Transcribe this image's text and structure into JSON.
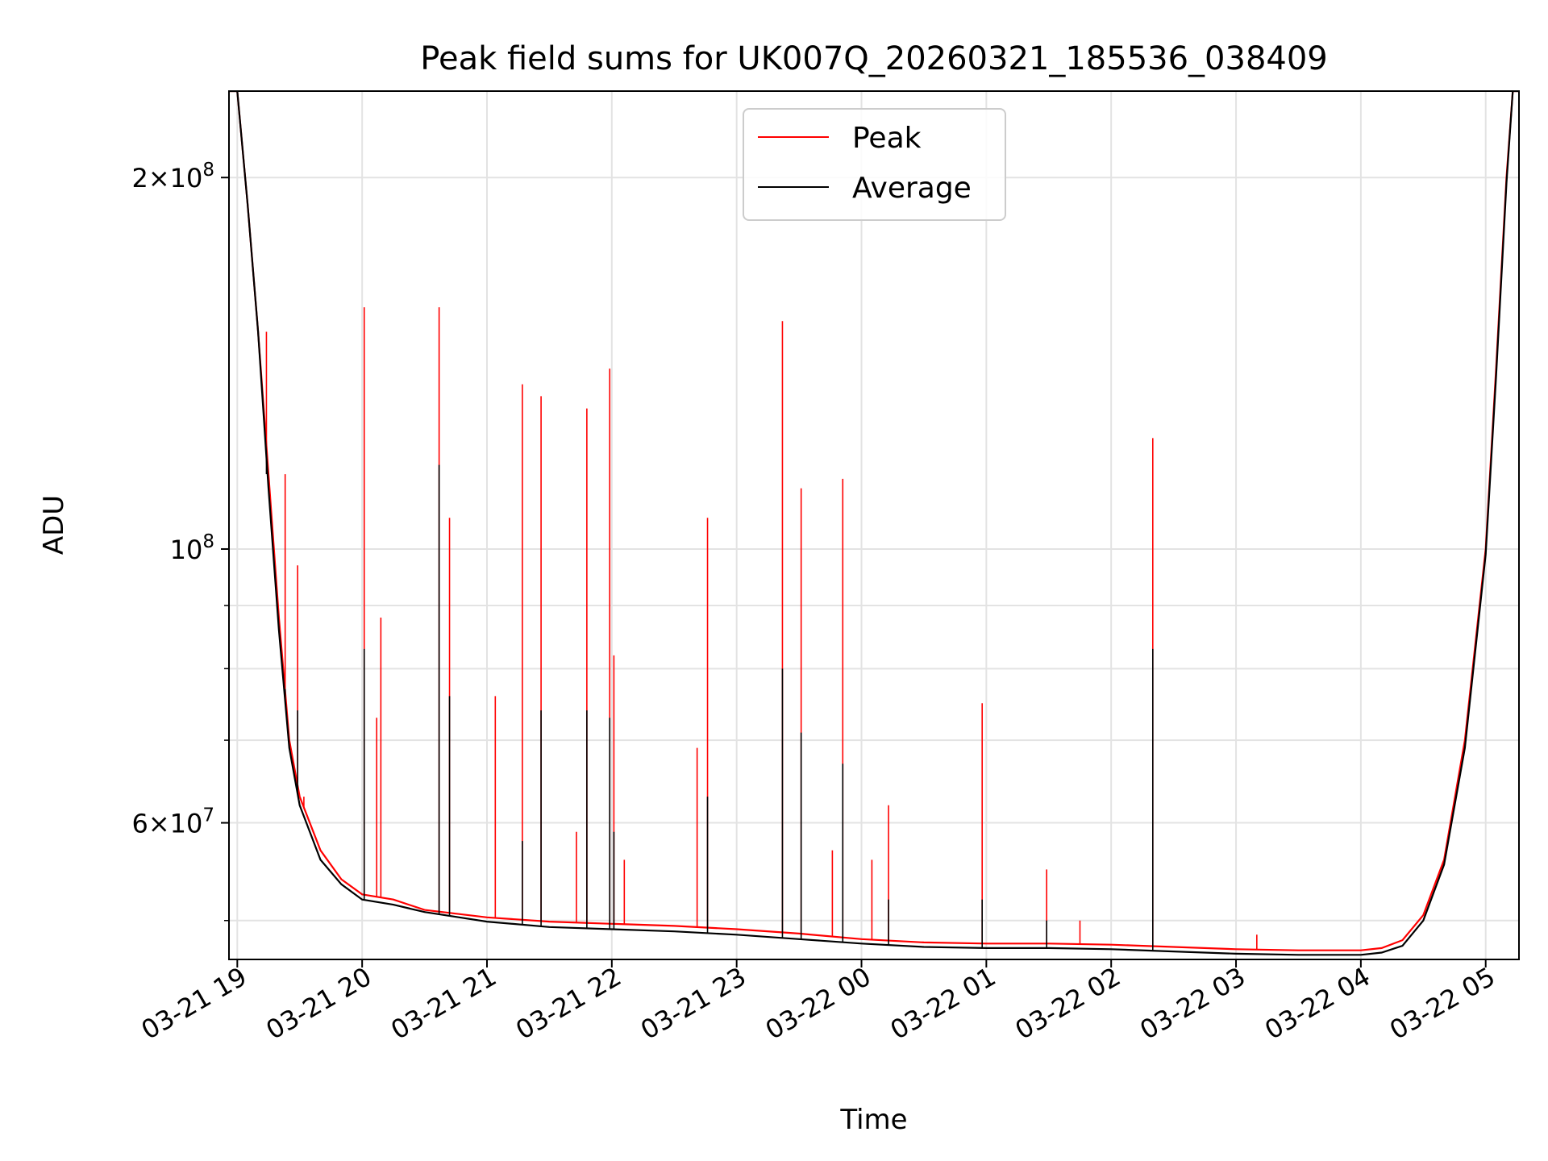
{
  "chart_data": {
    "type": "line",
    "title": "Peak field sums for UK007Q_20260321_185536_038409",
    "xlabel": "Time",
    "ylabel": "ADU",
    "yscale": "log",
    "ylim": [
      46500000,
      235000000
    ],
    "xlim": [
      "2026-03-21 18:56",
      "2026-03-22 05:16"
    ],
    "grid": true,
    "legend_position": "top-center",
    "x_ticks": [
      "03-21 19",
      "03-21 20",
      "03-21 21",
      "03-21 22",
      "03-21 23",
      "03-22 00",
      "03-22 01",
      "03-22 02",
      "03-22 03",
      "03-22 04",
      "03-22 05"
    ],
    "y_ticks": [
      {
        "value": 60000000,
        "label_base": "6×10",
        "label_exp": "7"
      },
      {
        "value": 100000000,
        "label_base": "10",
        "label_exp": "8"
      },
      {
        "value": 200000000,
        "label_base": "2×10",
        "label_exp": "8"
      }
    ],
    "y_minor_ticks": [
      50000000,
      70000000,
      80000000,
      90000000
    ],
    "series": [
      {
        "name": "Peak",
        "color": "#ff0000",
        "baseline": [
          [
            "2026-03-21 18:56",
            235000000
          ],
          [
            "2026-03-21 19:00",
            235000000
          ],
          [
            "2026-03-21 19:05",
            190000000
          ],
          [
            "2026-03-21 19:10",
            150000000
          ],
          [
            "2026-03-21 19:15",
            115000000
          ],
          [
            "2026-03-21 19:20",
            88000000
          ],
          [
            "2026-03-21 19:25",
            70000000
          ],
          [
            "2026-03-21 19:30",
            63000000
          ],
          [
            "2026-03-21 19:40",
            57000000
          ],
          [
            "2026-03-21 19:50",
            54000000
          ],
          [
            "2026-03-21 20:00",
            52500000
          ],
          [
            "2026-03-21 20:15",
            52000000
          ],
          [
            "2026-03-21 20:30",
            51000000
          ],
          [
            "2026-03-21 21:00",
            50300000
          ],
          [
            "2026-03-21 21:30",
            49900000
          ],
          [
            "2026-03-21 22:00",
            49700000
          ],
          [
            "2026-03-21 22:30",
            49500000
          ],
          [
            "2026-03-21 23:00",
            49200000
          ],
          [
            "2026-03-21 23:30",
            48800000
          ],
          [
            "2026-03-22 00:00",
            48300000
          ],
          [
            "2026-03-22 00:30",
            48000000
          ],
          [
            "2026-03-22 01:00",
            47900000
          ],
          [
            "2026-03-22 01:30",
            47900000
          ],
          [
            "2026-03-22 02:00",
            47800000
          ],
          [
            "2026-03-22 02:30",
            47600000
          ],
          [
            "2026-03-22 03:00",
            47400000
          ],
          [
            "2026-03-22 03:30",
            47300000
          ],
          [
            "2026-03-22 04:00",
            47300000
          ],
          [
            "2026-03-22 04:10",
            47500000
          ],
          [
            "2026-03-22 04:20",
            48200000
          ],
          [
            "2026-03-22 04:30",
            50500000
          ],
          [
            "2026-03-22 04:40",
            56000000
          ],
          [
            "2026-03-22 04:50",
            70000000
          ],
          [
            "2026-03-22 05:00",
            100000000
          ],
          [
            "2026-03-22 05:05",
            140000000
          ],
          [
            "2026-03-22 05:10",
            200000000
          ],
          [
            "2026-03-22 05:13",
            235000000
          ],
          [
            "2026-03-22 05:16",
            235000000
          ]
        ],
        "spikes": [
          [
            "2026-03-21 19:14",
            150000000
          ],
          [
            "2026-03-21 19:23",
            115000000
          ],
          [
            "2026-03-21 19:29",
            97000000
          ],
          [
            "2026-03-21 19:32",
            63000000
          ],
          [
            "2026-03-21 20:01",
            157000000
          ],
          [
            "2026-03-21 20:07",
            73000000
          ],
          [
            "2026-03-21 20:09",
            88000000
          ],
          [
            "2026-03-21 20:37",
            157000000
          ],
          [
            "2026-03-21 20:42",
            106000000
          ],
          [
            "2026-03-21 21:04",
            76000000
          ],
          [
            "2026-03-21 21:17",
            136000000
          ],
          [
            "2026-03-21 21:26",
            133000000
          ],
          [
            "2026-03-21 21:43",
            59000000
          ],
          [
            "2026-03-21 21:48",
            130000000
          ],
          [
            "2026-03-21 21:59",
            140000000
          ],
          [
            "2026-03-21 22:06",
            56000000
          ],
          [
            "2026-03-21 22:01",
            82000000
          ],
          [
            "2026-03-21 22:41",
            69000000
          ],
          [
            "2026-03-21 22:46",
            106000000
          ],
          [
            "2026-03-21 23:22",
            153000000
          ],
          [
            "2026-03-21 23:31",
            112000000
          ],
          [
            "2026-03-21 23:46",
            57000000
          ],
          [
            "2026-03-21 23:51",
            114000000
          ],
          [
            "2026-03-22 00:05",
            56000000
          ],
          [
            "2026-03-22 00:13",
            62000000
          ],
          [
            "2026-03-22 00:58",
            75000000
          ],
          [
            "2026-03-22 01:29",
            55000000
          ],
          [
            "2026-03-22 01:45",
            50000000
          ],
          [
            "2026-03-22 02:20",
            123000000
          ],
          [
            "2026-03-22 03:10",
            48700000
          ]
        ]
      },
      {
        "name": "Average",
        "color": "#000000",
        "baseline": [
          [
            "2026-03-21 18:56",
            235000000
          ],
          [
            "2026-03-21 19:00",
            235000000
          ],
          [
            "2026-03-21 19:05",
            190000000
          ],
          [
            "2026-03-21 19:10",
            150000000
          ],
          [
            "2026-03-21 19:15",
            112000000
          ],
          [
            "2026-03-21 19:20",
            86000000
          ],
          [
            "2026-03-21 19:25",
            69000000
          ],
          [
            "2026-03-21 19:30",
            62000000
          ],
          [
            "2026-03-21 19:40",
            56000000
          ],
          [
            "2026-03-21 19:50",
            53500000
          ],
          [
            "2026-03-21 20:00",
            52000000
          ],
          [
            "2026-03-21 20:15",
            51500000
          ],
          [
            "2026-03-21 20:30",
            50800000
          ],
          [
            "2026-03-21 21:00",
            49900000
          ],
          [
            "2026-03-21 21:30",
            49400000
          ],
          [
            "2026-03-21 22:00",
            49200000
          ],
          [
            "2026-03-21 22:30",
            49000000
          ],
          [
            "2026-03-21 23:00",
            48700000
          ],
          [
            "2026-03-21 23:30",
            48300000
          ],
          [
            "2026-03-22 00:00",
            47900000
          ],
          [
            "2026-03-22 00:30",
            47600000
          ],
          [
            "2026-03-22 01:00",
            47500000
          ],
          [
            "2026-03-22 01:30",
            47500000
          ],
          [
            "2026-03-22 02:00",
            47400000
          ],
          [
            "2026-03-22 02:30",
            47200000
          ],
          [
            "2026-03-22 03:00",
            47000000
          ],
          [
            "2026-03-22 03:30",
            46900000
          ],
          [
            "2026-03-22 04:00",
            46900000
          ],
          [
            "2026-03-22 04:10",
            47100000
          ],
          [
            "2026-03-22 04:20",
            47700000
          ],
          [
            "2026-03-22 04:30",
            50000000
          ],
          [
            "2026-03-22 04:40",
            55500000
          ],
          [
            "2026-03-22 04:50",
            69000000
          ],
          [
            "2026-03-22 05:00",
            99000000
          ],
          [
            "2026-03-22 05:05",
            138000000
          ],
          [
            "2026-03-22 05:10",
            198000000
          ],
          [
            "2026-03-22 05:13",
            235000000
          ],
          [
            "2026-03-22 05:16",
            235000000
          ]
        ],
        "spikes": [
          [
            "2026-03-21 19:14",
            115000000
          ],
          [
            "2026-03-21 19:23",
            77000000
          ],
          [
            "2026-03-21 19:29",
            74000000
          ],
          [
            "2026-03-21 20:01",
            83000000
          ],
          [
            "2026-03-21 20:37",
            117000000
          ],
          [
            "2026-03-21 20:42",
            76000000
          ],
          [
            "2026-03-21 21:17",
            58000000
          ],
          [
            "2026-03-21 21:26",
            74000000
          ],
          [
            "2026-03-21 21:48",
            74000000
          ],
          [
            "2026-03-21 21:59",
            73000000
          ],
          [
            "2026-03-21 22:01",
            59000000
          ],
          [
            "2026-03-21 22:46",
            63000000
          ],
          [
            "2026-03-21 23:22",
            80000000
          ],
          [
            "2026-03-21 23:31",
            71000000
          ],
          [
            "2026-03-21 23:51",
            67000000
          ],
          [
            "2026-03-22 00:13",
            52000000
          ],
          [
            "2026-03-22 00:58",
            52000000
          ],
          [
            "2026-03-22 01:29",
            50000000
          ],
          [
            "2026-03-22 02:20",
            83000000
          ]
        ]
      }
    ]
  }
}
